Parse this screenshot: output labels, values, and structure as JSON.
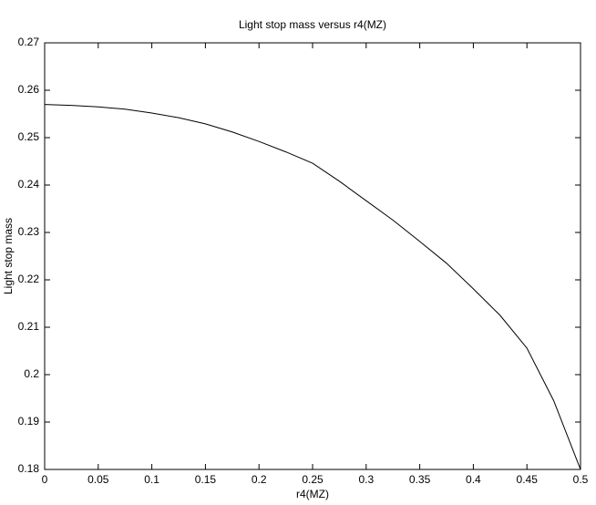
{
  "chart_data": {
    "type": "line",
    "title": "Light stop mass versus r4(MZ)",
    "x_label": "r4(MZ)",
    "y_label": "Light stop mass",
    "x": [
      0,
      0.025,
      0.05,
      0.075,
      0.1,
      0.125,
      0.15,
      0.175,
      0.2,
      0.225,
      0.25,
      0.275,
      0.3,
      0.325,
      0.35,
      0.375,
      0.4,
      0.425,
      0.45,
      0.475,
      0.5
    ],
    "series": [
      {
        "name": "Light stop mass",
        "color": "#000000",
        "values": [
          0.257,
          0.2568,
          0.2565,
          0.256,
          0.2552,
          0.2542,
          0.2529,
          0.2512,
          0.2492,
          0.247,
          0.2446,
          0.2408,
          0.2367,
          0.2326,
          0.2281,
          0.2235,
          0.2181,
          0.2125,
          0.2056,
          0.1945,
          0.18
        ]
      }
    ],
    "xlim": [
      0,
      0.5
    ],
    "ylim": [
      0.18,
      0.27
    ],
    "xticks": [
      0,
      0.05,
      0.1,
      0.15,
      0.2,
      0.25,
      0.3,
      0.35,
      0.4,
      0.45,
      0.5
    ],
    "yticks": [
      0.18,
      0.19,
      0.2,
      0.21,
      0.22,
      0.23,
      0.24,
      0.25,
      0.26,
      0.27
    ],
    "grid": false
  }
}
